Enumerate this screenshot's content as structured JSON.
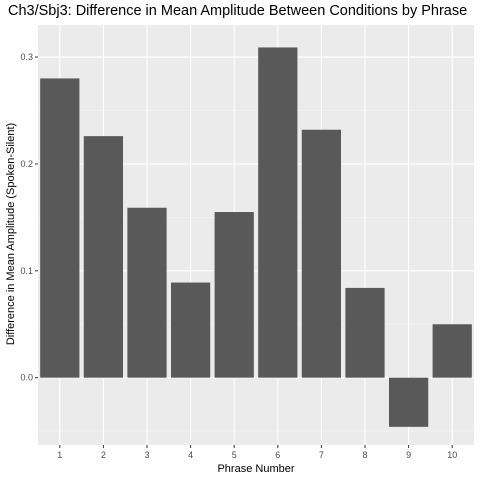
{
  "chart_data": {
    "type": "bar",
    "title": "Ch3/Sbj3: Difference in Mean Amplitude Between Conditions by Phrase",
    "xlabel": "Phrase Number",
    "ylabel": "Difference in Mean Amplitude (Spoken-Silent)",
    "categories": [
      "1",
      "2",
      "3",
      "4",
      "5",
      "6",
      "7",
      "8",
      "9",
      "10"
    ],
    "values": [
      0.28,
      0.226,
      0.159,
      0.089,
      0.155,
      0.309,
      0.232,
      0.084,
      -0.046,
      0.05
    ],
    "ylim": [
      -0.063,
      0.33
    ],
    "yticks": [
      0.0,
      0.1,
      0.2,
      0.3
    ],
    "ytick_labels": [
      "0.0",
      "0.1",
      "0.2",
      "0.3"
    ],
    "grid": true,
    "legend": "none",
    "colors": {
      "bar": "#595959",
      "panel": "#ebebeb",
      "grid_major": "#ffffff",
      "grid_minor": "#f5f5f5",
      "tick_text": "#4d4d4d",
      "axis_text": "#000000"
    }
  }
}
